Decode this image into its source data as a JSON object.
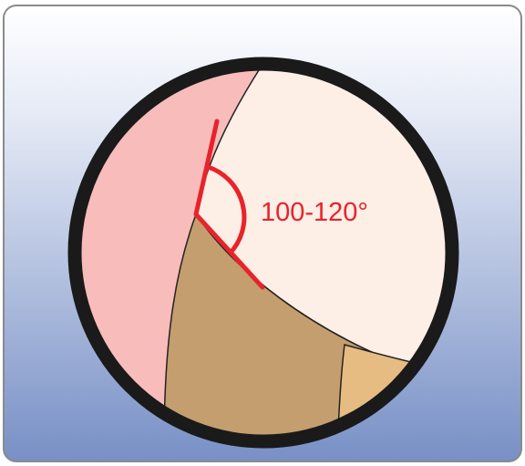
{
  "annotation": {
    "label": "100-120°"
  }
}
